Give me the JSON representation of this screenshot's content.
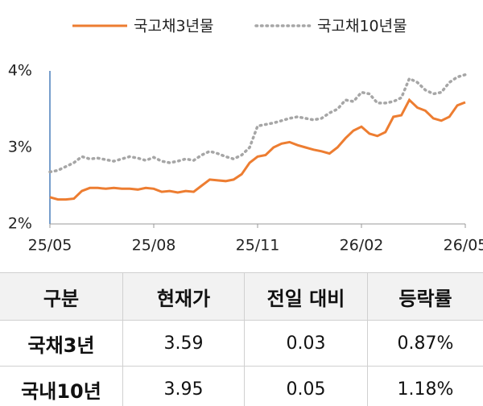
{
  "chart_data": {
    "type": "line",
    "categories": [
      "25/05",
      null,
      null,
      null,
      null,
      null,
      null,
      null,
      null,
      null,
      null,
      null,
      null,
      "25/08",
      null,
      null,
      null,
      null,
      null,
      null,
      null,
      null,
      null,
      null,
      null,
      null,
      "25/11",
      null,
      null,
      null,
      null,
      null,
      null,
      null,
      null,
      null,
      null,
      null,
      null,
      "26/02",
      null,
      null,
      null,
      null,
      null,
      null,
      null,
      null,
      null,
      null,
      null,
      null,
      "26/05"
    ],
    "series": [
      {
        "name": "국고채3년물",
        "color": "#ed7d31",
        "dash": "solid",
        "values": [
          2.35,
          2.32,
          2.32,
          2.33,
          2.43,
          2.47,
          2.47,
          2.46,
          2.47,
          2.46,
          2.46,
          2.45,
          2.47,
          2.46,
          2.42,
          2.43,
          2.41,
          2.43,
          2.42,
          2.5,
          2.58,
          2.57,
          2.56,
          2.58,
          2.65,
          2.8,
          2.88,
          2.9,
          3.0,
          3.05,
          3.07,
          3.03,
          3.0,
          2.97,
          2.95,
          2.92,
          3.0,
          3.12,
          3.22,
          3.27,
          3.18,
          3.15,
          3.2,
          3.4,
          3.42,
          3.62,
          3.52,
          3.48,
          3.38,
          3.35,
          3.4,
          3.55,
          3.59
        ]
      },
      {
        "name": "국고채10년물",
        "color": "#a6a6a6",
        "dash": "dotted",
        "values": [
          2.68,
          2.7,
          2.75,
          2.8,
          2.88,
          2.85,
          2.86,
          2.84,
          2.82,
          2.85,
          2.88,
          2.86,
          2.83,
          2.87,
          2.82,
          2.8,
          2.82,
          2.85,
          2.83,
          2.9,
          2.95,
          2.92,
          2.88,
          2.85,
          2.9,
          3.0,
          3.28,
          3.3,
          3.32,
          3.35,
          3.38,
          3.4,
          3.38,
          3.36,
          3.38,
          3.45,
          3.5,
          3.62,
          3.6,
          3.72,
          3.7,
          3.58,
          3.58,
          3.6,
          3.65,
          3.9,
          3.85,
          3.75,
          3.7,
          3.72,
          3.85,
          3.92,
          3.95
        ]
      }
    ],
    "ylim": [
      2,
      4
    ],
    "yticks": [
      {
        "value": 2,
        "label": "2%"
      },
      {
        "value": 3,
        "label": "3%"
      },
      {
        "value": 4,
        "label": "4%"
      }
    ],
    "grid": false
  },
  "table": {
    "header": [
      "구분",
      "현재가",
      "전일 대비",
      "등락률"
    ],
    "rows": [
      [
        "국채3년",
        "3.59",
        "0.03",
        "0.87%"
      ],
      [
        "국내10년",
        "3.95",
        "0.05",
        "1.18%"
      ]
    ]
  }
}
